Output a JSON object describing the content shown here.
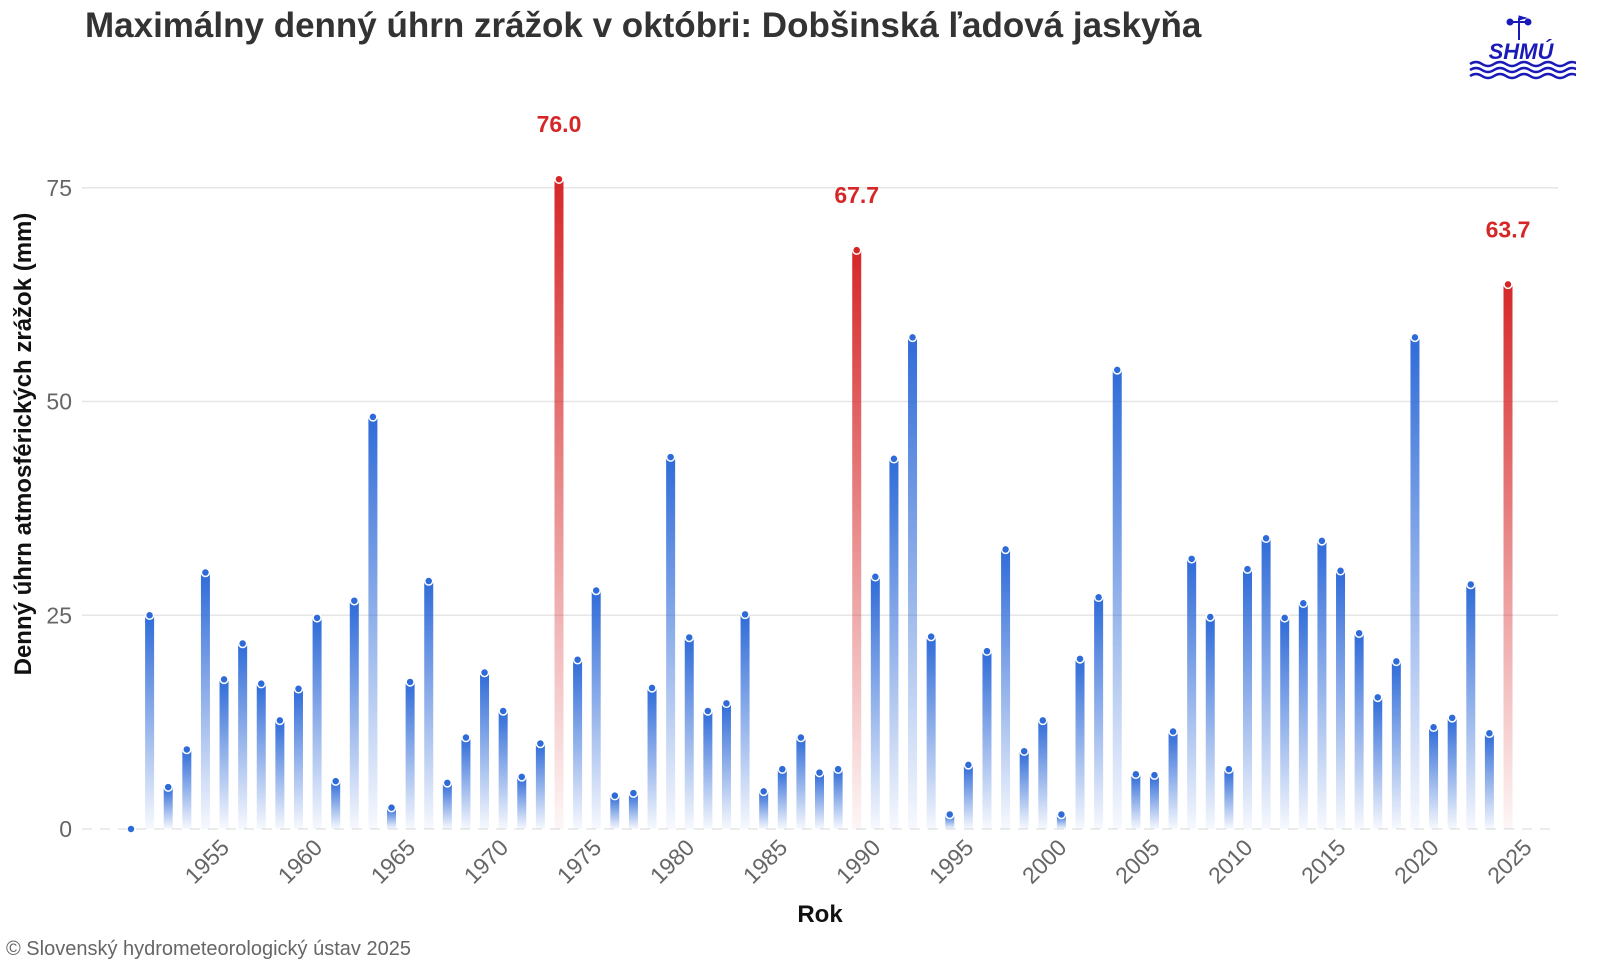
{
  "title": "Maximálny denný úhrn zrážok v októbri: Dobšinská ľadová jaskyňa",
  "footer": "© Slovenský hydrometeorologický ústav 2025",
  "logo_text": "SHMÚ",
  "colors": {
    "normal": "#2f6bd8",
    "highlight": "#d62728",
    "grid": "#e6e6e6",
    "title": "#333333"
  },
  "chart_data": {
    "type": "bar",
    "title": "Maximálny denný úhrn zrážok v októbri: Dobšinská ľadová jaskyňa",
    "xlabel": "Rok",
    "ylabel": "Denný úhrn atmosférických zrážok (mm)",
    "ylim": [
      0,
      80
    ],
    "yticks": [
      0,
      25,
      50,
      75
    ],
    "xticks": [
      1955,
      1960,
      1965,
      1970,
      1975,
      1980,
      1985,
      1990,
      1995,
      2000,
      2005,
      2010,
      2015,
      2020,
      2025
    ],
    "grid": true,
    "x": [
      1951,
      1952,
      1953,
      1954,
      1955,
      1956,
      1957,
      1958,
      1959,
      1960,
      1961,
      1962,
      1963,
      1964,
      1965,
      1966,
      1967,
      1968,
      1969,
      1970,
      1971,
      1972,
      1973,
      1974,
      1975,
      1976,
      1977,
      1978,
      1979,
      1980,
      1981,
      1982,
      1983,
      1984,
      1985,
      1986,
      1987,
      1988,
      1989,
      1990,
      1991,
      1992,
      1993,
      1994,
      1995,
      1996,
      1997,
      1998,
      1999,
      2000,
      2001,
      2002,
      2003,
      2004,
      2005,
      2006,
      2007,
      2008,
      2009,
      2010,
      2011,
      2012,
      2013,
      2014,
      2015,
      2016,
      2017,
      2018,
      2019,
      2020,
      2021,
      2022,
      2023,
      2024,
      2025
    ],
    "values": [
      0,
      25.0,
      4.9,
      9.3,
      30.0,
      17.5,
      21.7,
      17.0,
      12.7,
      16.4,
      24.7,
      5.6,
      26.7,
      48.2,
      2.5,
      17.2,
      29.0,
      5.4,
      10.7,
      18.3,
      13.8,
      6.1,
      10.0,
      76.0,
      19.8,
      27.9,
      3.9,
      4.2,
      16.5,
      43.5,
      22.4,
      13.8,
      14.7,
      25.1,
      4.4,
      7.0,
      10.7,
      6.6,
      7.0,
      67.7,
      29.5,
      43.3,
      57.5,
      22.5,
      1.7,
      7.5,
      20.8,
      32.7,
      9.1,
      12.7,
      1.7,
      19.9,
      27.1,
      53.7,
      6.4,
      6.3,
      11.4,
      31.6,
      24.8,
      7.0,
      30.4,
      34.0,
      24.7,
      26.4,
      33.7,
      30.2,
      22.9,
      15.4,
      19.6,
      57.5,
      11.9,
      13.0,
      28.6,
      11.2,
      63.7
    ],
    "highlighted": [
      {
        "year": 1974,
        "value": 76.0,
        "label": "76.0"
      },
      {
        "year": 1990,
        "value": 67.7,
        "label": "67.7"
      },
      {
        "year": 2025,
        "value": 63.7,
        "label": "63.7"
      }
    ]
  }
}
